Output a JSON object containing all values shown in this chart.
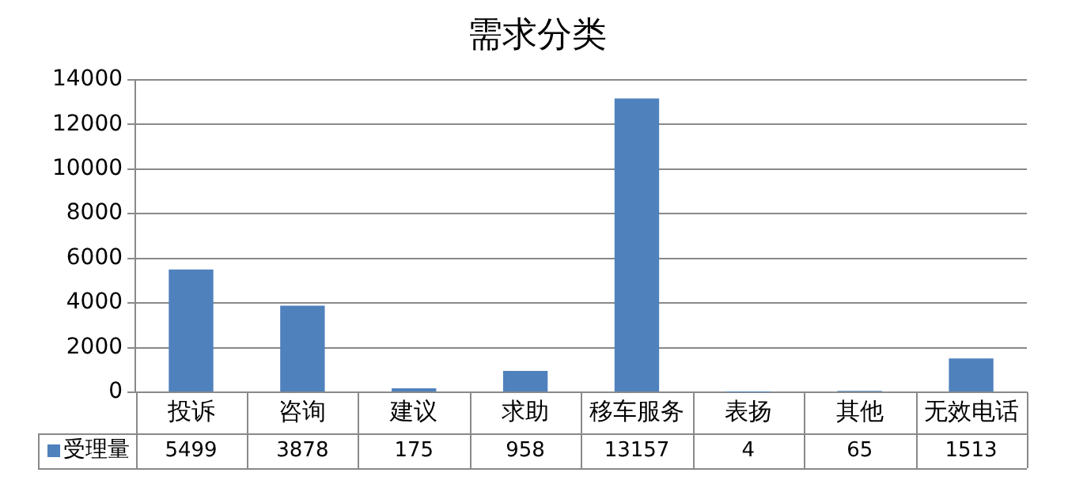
{
  "chart_data": {
    "type": "bar",
    "title": "需求分类",
    "categories": [
      "投诉",
      "咨询",
      "建议",
      "求助",
      "移车服务",
      "表扬",
      "其他",
      "无效电话"
    ],
    "series": [
      {
        "name": "受理量",
        "color": "#4f81bd",
        "values": [
          5499,
          3878,
          175,
          958,
          13157,
          4,
          65,
          1513
        ]
      }
    ],
    "ylim": [
      0,
      14000
    ],
    "yticks": [
      0,
      2000,
      4000,
      6000,
      8000,
      10000,
      12000,
      14000
    ],
    "grid": "y",
    "legend": "bottom",
    "data_labels": true
  }
}
